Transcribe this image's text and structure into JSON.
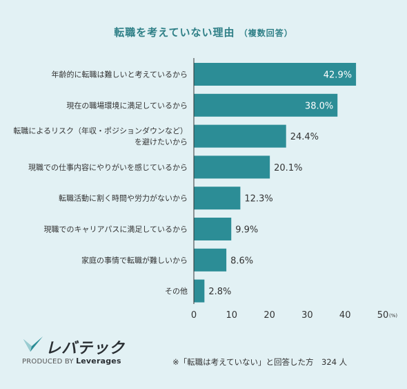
{
  "title": "転職を考えていない理由",
  "title_sub": "（複数回答）",
  "chart_data": {
    "type": "bar",
    "orientation": "horizontal",
    "categories": [
      [
        "年齢的に転職は難しいと考えているから"
      ],
      [
        "現在の職場環境に満足しているから"
      ],
      [
        "転職によるリスク（年収・ポジションダウンなど）",
        "を避けたいから"
      ],
      [
        "現職での仕事内容にやりがいを感じているから"
      ],
      [
        "転職活動に割く時間や労力がないから"
      ],
      [
        "現職でのキャリアパスに満足しているから"
      ],
      [
        "家庭の事情で転職が難しいから"
      ],
      [
        "その他"
      ]
    ],
    "values": [
      42.9,
      38.0,
      24.4,
      20.1,
      12.3,
      9.9,
      8.6,
      2.8
    ],
    "value_labels": [
      "42.9%",
      "38.0%",
      "24.4%",
      "20.1%",
      "12.3%",
      "9.9%",
      "8.6%",
      "2.8%"
    ],
    "xlim": [
      0,
      50
    ],
    "xticks": [
      "0",
      "10",
      "20",
      "30",
      "40",
      "50"
    ],
    "xunit": "(%)",
    "bar_color": "#2c8d96"
  },
  "logo": {
    "name": "レバテック",
    "produced_by": "PRODUCED BY",
    "brand": "Leverages"
  },
  "note": "※「転職は考えていない」と回答した方　324 人"
}
